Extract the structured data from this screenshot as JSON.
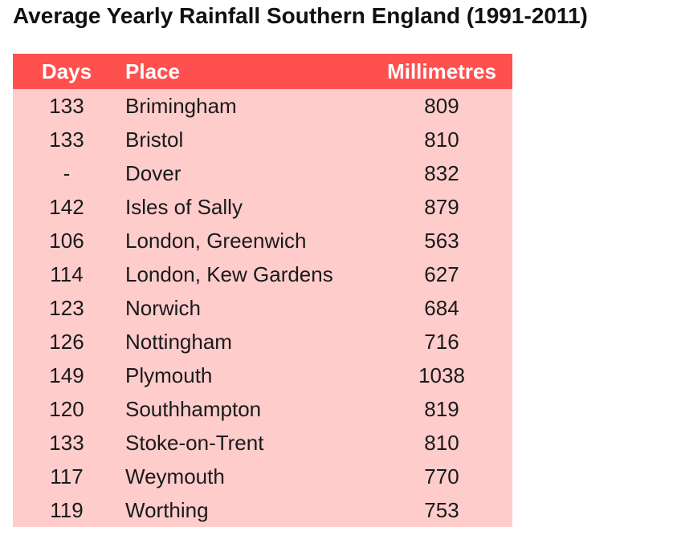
{
  "title": "Average Yearly Rainfall Southern England (1991-2011)",
  "colors": {
    "header_bg": "#ff5050",
    "body_bg": "#ffcccc",
    "header_text": "#ffffff"
  },
  "table": {
    "headers": [
      "Days",
      "Place",
      "Millimetres"
    ],
    "rows": [
      {
        "days": "133",
        "place": "Brimingham",
        "mm": "809"
      },
      {
        "days": "133",
        "place": "Bristol",
        "mm": "810"
      },
      {
        "days": "-",
        "place": "Dover",
        "mm": "832"
      },
      {
        "days": "142",
        "place": "Isles of Sally",
        "mm": "879"
      },
      {
        "days": "106",
        "place": "London, Greenwich",
        "mm": "563"
      },
      {
        "days": "114",
        "place": "London, Kew Gardens",
        "mm": "627"
      },
      {
        "days": "123",
        "place": "Norwich",
        "mm": "684"
      },
      {
        "days": "126",
        "place": "Nottingham",
        "mm": "716"
      },
      {
        "days": "149",
        "place": "Plymouth",
        "mm": "1038"
      },
      {
        "days": "120",
        "place": "Southhampton",
        "mm": "819"
      },
      {
        "days": "133",
        "place": "Stoke-on-Trent",
        "mm": "810"
      },
      {
        "days": "117",
        "place": "Weymouth",
        "mm": "770"
      },
      {
        "days": "119",
        "place": "Worthing",
        "mm": "753"
      }
    ]
  }
}
